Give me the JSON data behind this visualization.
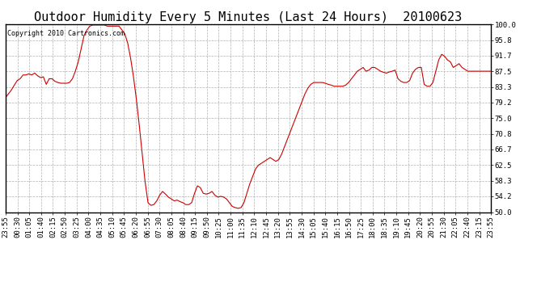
{
  "title": "Outdoor Humidity Every 5 Minutes (Last 24 Hours)  20100623",
  "copyright_text": "Copyright 2010 Cartronics.com",
  "background_color": "#ffffff",
  "plot_bg_color": "#ffffff",
  "grid_color": "#b0b0b0",
  "line_color": "#cc0000",
  "ylim": [
    50.0,
    100.0
  ],
  "yticks": [
    50.0,
    54.2,
    58.3,
    62.5,
    66.7,
    70.8,
    75.0,
    79.2,
    83.3,
    87.5,
    91.7,
    95.8,
    100.0
  ],
  "title_fontsize": 11,
  "tick_fontsize": 6.5,
  "x_labels": [
    "23:55",
    "00:30",
    "01:05",
    "01:40",
    "02:15",
    "02:50",
    "03:25",
    "04:00",
    "04:35",
    "05:10",
    "05:45",
    "06:20",
    "06:55",
    "07:30",
    "08:05",
    "08:40",
    "09:15",
    "09:50",
    "10:25",
    "11:00",
    "11:35",
    "12:10",
    "12:45",
    "13:20",
    "13:55",
    "14:30",
    "15:05",
    "15:40",
    "16:15",
    "16:50",
    "17:25",
    "18:00",
    "18:35",
    "19:10",
    "19:45",
    "20:20",
    "20:55",
    "21:30",
    "22:05",
    "22:40",
    "23:15",
    "23:55"
  ],
  "humidity_data": [
    80.5,
    81.5,
    82.5,
    83.8,
    85.0,
    85.5,
    86.5,
    86.5,
    86.8,
    86.5,
    87.0,
    86.3,
    85.8,
    86.0,
    84.0,
    85.5,
    85.5,
    84.8,
    84.5,
    84.3,
    84.3,
    84.3,
    84.5,
    85.5,
    87.5,
    90.0,
    93.5,
    97.0,
    98.5,
    99.5,
    99.8,
    99.8,
    99.8,
    99.8,
    99.8,
    99.5,
    99.5,
    99.5,
    99.5,
    99.5,
    98.5,
    97.5,
    95.0,
    91.0,
    86.0,
    80.0,
    73.0,
    65.5,
    58.0,
    52.5,
    51.8,
    52.0,
    53.0,
    54.5,
    55.5,
    54.8,
    54.0,
    53.5,
    53.0,
    53.2,
    52.8,
    52.5,
    52.0,
    52.0,
    52.5,
    55.0,
    57.0,
    56.5,
    55.0,
    54.8,
    55.0,
    55.5,
    54.5,
    54.0,
    54.2,
    54.0,
    53.5,
    52.5,
    51.5,
    51.2,
    51.0,
    51.2,
    52.5,
    55.0,
    57.5,
    59.5,
    61.5,
    62.5,
    63.0,
    63.5,
    64.0,
    64.5,
    64.0,
    63.5,
    64.0,
    65.5,
    67.5,
    69.5,
    71.5,
    73.5,
    75.5,
    77.5,
    79.5,
    81.5,
    83.0,
    84.0,
    84.5,
    84.5,
    84.5,
    84.5,
    84.3,
    84.0,
    83.8,
    83.5,
    83.5,
    83.5,
    83.5,
    83.8,
    84.5,
    85.5,
    86.5,
    87.5,
    88.0,
    88.5,
    87.5,
    87.8,
    88.5,
    88.5,
    88.0,
    87.5,
    87.2,
    87.0,
    87.3,
    87.5,
    87.8,
    85.5,
    84.8,
    84.5,
    84.5,
    85.0,
    87.0,
    88.0,
    88.5,
    88.5,
    84.0,
    83.5,
    83.5,
    84.5,
    87.5,
    90.5,
    92.0,
    91.5,
    90.5,
    90.0,
    88.5,
    89.0,
    89.5,
    88.5,
    88.0,
    87.5,
    87.5,
    87.5,
    87.5,
    87.5,
    87.5,
    87.5,
    87.5,
    87.5
  ]
}
